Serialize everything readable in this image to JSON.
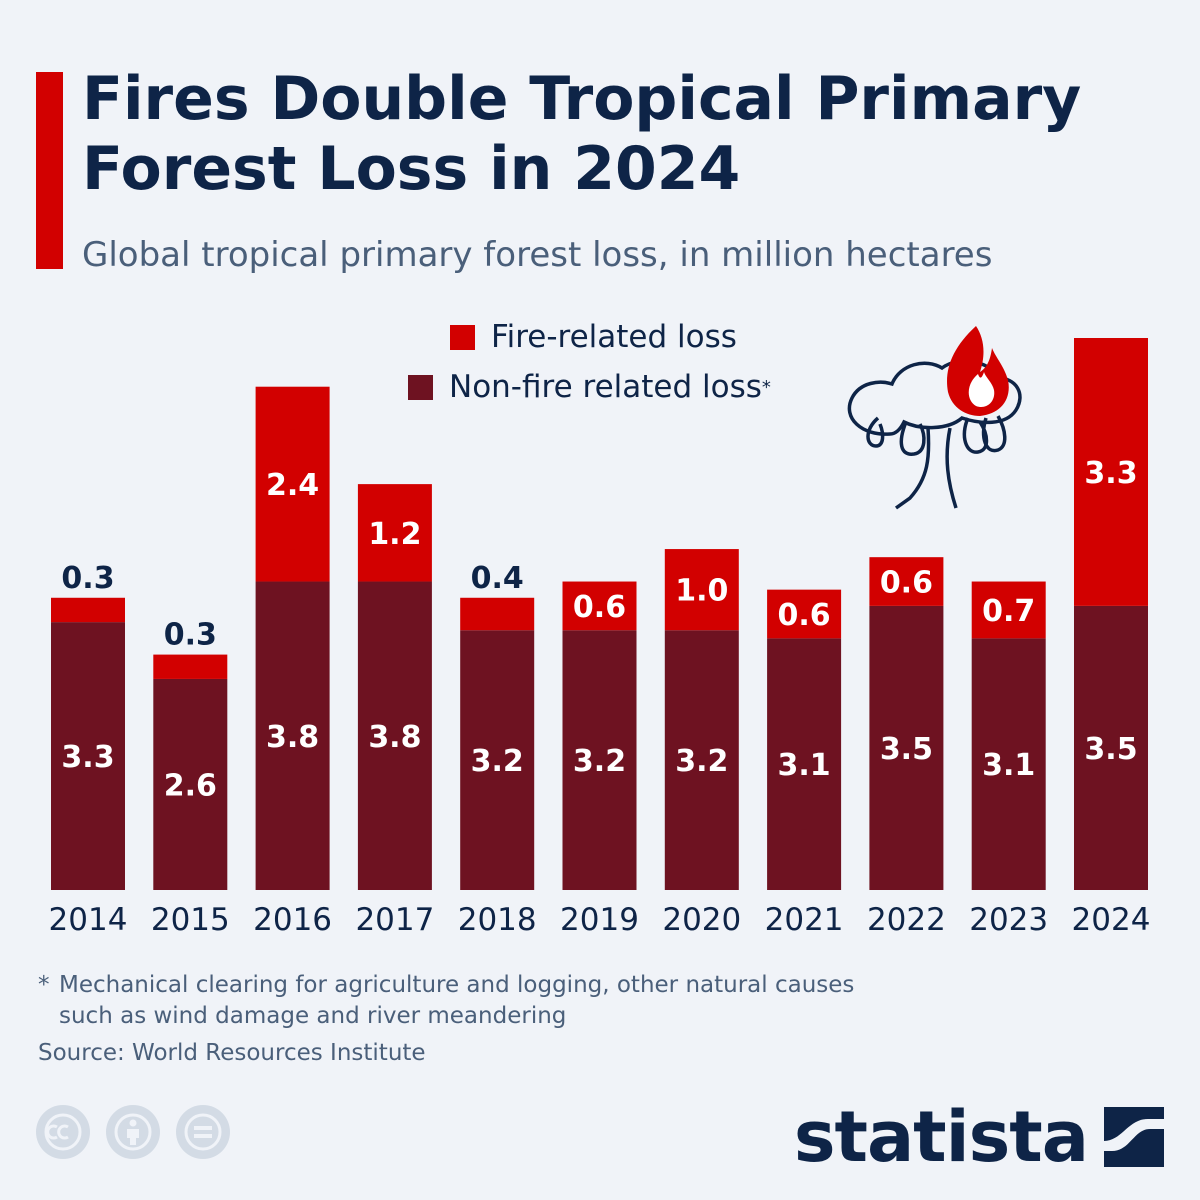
{
  "header": {
    "title": "Fires Double Tropical Primary Forest Loss in 2024",
    "subtitle": "Global tropical primary forest loss, in million hectares"
  },
  "legend": {
    "fire": "Fire-related loss",
    "non_fire": "Non-fire related loss",
    "non_fire_marker": "*"
  },
  "footer": {
    "footnote_marker": "*",
    "footnote": "Mechanical clearing for agriculture and logging, other natural causes such as wind damage and river meandering",
    "source": "Source: World Resources Institute",
    "brand": "statista"
  },
  "license_icons": [
    "cc-icon",
    "attribution-icon",
    "no-derivatives-icon"
  ],
  "colors": {
    "fire": "#d20000",
    "non_fire": "#6e1221",
    "title": "#0e2447",
    "accent": "#d20000"
  },
  "chart_data": {
    "type": "bar",
    "stacked": true,
    "categories": [
      "2014",
      "2015",
      "2016",
      "2017",
      "2018",
      "2019",
      "2020",
      "2021",
      "2022",
      "2023",
      "2024"
    ],
    "series": [
      {
        "name": "Non-fire related loss",
        "values": [
          3.3,
          2.6,
          3.8,
          3.8,
          3.2,
          3.2,
          3.2,
          3.1,
          3.5,
          3.1,
          3.5
        ]
      },
      {
        "name": "Fire-related loss",
        "values": [
          0.3,
          0.3,
          2.4,
          1.2,
          0.4,
          0.6,
          1.0,
          0.6,
          0.6,
          0.7,
          3.3
        ]
      }
    ],
    "labels": {
      "non_fire": [
        "3.3",
        "2.6",
        "3.8",
        "3.8",
        "3.2",
        "3.2",
        "3.2",
        "3.1",
        "3.5",
        "3.1",
        "3.5"
      ],
      "fire": [
        "0.3",
        "0.3",
        "2.4",
        "1.2",
        "0.4",
        "0.6",
        "1.0",
        "0.6",
        "0.6",
        "0.7",
        "3.3"
      ]
    },
    "ylim": [
      0,
      6.8
    ],
    "grid": false,
    "legend_position": "top-center"
  }
}
